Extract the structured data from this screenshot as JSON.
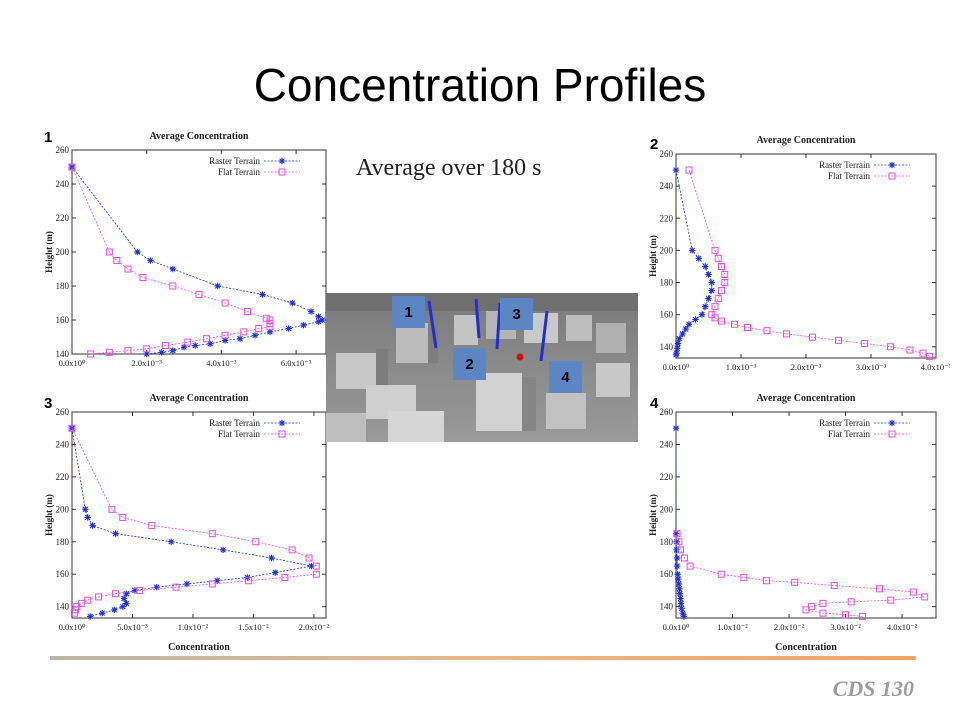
{
  "title": "Concentration Profiles",
  "subtitle": "Average over 180 s",
  "footer": "CDS 130",
  "panel_numbers": [
    "1",
    "2",
    "3",
    "4"
  ],
  "scene_labels": [
    "1",
    "3",
    "2",
    "4"
  ],
  "colors": {
    "raster": "#1f2fd6",
    "flat": "#e44de0"
  },
  "chart_data": [
    {
      "type": "line",
      "title": "Average Concentration",
      "ylabel": "Height (m)",
      "xlabel": "",
      "xlim": [
        0,
        0.0068
      ],
      "ylim": [
        140,
        260
      ],
      "xticks": [
        0,
        0.002,
        0.004,
        0.006
      ],
      "xtick_labels": [
        "0.0x10⁰",
        "2.0x10⁻³",
        "4.0x10⁻³",
        "6.0x10⁻³"
      ],
      "yticks": [
        140,
        160,
        180,
        200,
        220,
        240,
        260
      ],
      "legend_position": "top-right",
      "series": [
        {
          "name": "Raster Terrain",
          "marker": "star",
          "points": [
            [
              0.0,
              250
            ],
            [
              0.00175,
              200
            ],
            [
              0.0021,
              195
            ],
            [
              0.0027,
              190
            ],
            [
              0.0039,
              180
            ],
            [
              0.0051,
              175
            ],
            [
              0.0059,
              170
            ],
            [
              0.0064,
              165
            ],
            [
              0.0066,
              162
            ],
            [
              0.0067,
              160
            ],
            [
              0.0066,
              159
            ],
            [
              0.0062,
              157
            ],
            [
              0.0058,
              155
            ],
            [
              0.0053,
              153
            ],
            [
              0.0049,
              151
            ],
            [
              0.0045,
              149
            ],
            [
              0.0041,
              148
            ],
            [
              0.0037,
              146
            ],
            [
              0.0033,
              145
            ],
            [
              0.003,
              144
            ],
            [
              0.0027,
              142
            ],
            [
              0.0024,
              141
            ],
            [
              0.002,
              140
            ]
          ]
        },
        {
          "name": "Flat Terrain",
          "marker": "square",
          "points": [
            [
              0.0,
              250
            ],
            [
              0.001,
              200
            ],
            [
              0.0012,
              195
            ],
            [
              0.0015,
              190
            ],
            [
              0.0019,
              185
            ],
            [
              0.0027,
              180
            ],
            [
              0.0034,
              175
            ],
            [
              0.0041,
              170
            ],
            [
              0.0047,
              165
            ],
            [
              0.0052,
              161
            ],
            [
              0.0053,
              160
            ],
            [
              0.0053,
              158
            ],
            [
              0.0053,
              156
            ],
            [
              0.005,
              155
            ],
            [
              0.0046,
              153
            ],
            [
              0.0041,
              151
            ],
            [
              0.0036,
              149
            ],
            [
              0.0031,
              147
            ],
            [
              0.0025,
              145
            ],
            [
              0.002,
              143
            ],
            [
              0.0015,
              142
            ],
            [
              0.001,
              141
            ],
            [
              0.0005,
              140
            ]
          ]
        }
      ]
    },
    {
      "type": "line",
      "title": "Average Concentration",
      "ylabel": "Height (m)",
      "xlabel": "",
      "xlim": [
        0,
        0.004
      ],
      "ylim": [
        133,
        260
      ],
      "xticks": [
        0,
        0.001,
        0.002,
        0.003,
        0.004
      ],
      "xtick_labels": [
        "0.0x10⁰",
        "1.0x10⁻³",
        "2.0x10⁻³",
        "3.0x10⁻³",
        "4.0x10⁻³"
      ],
      "yticks": [
        140,
        160,
        180,
        200,
        220,
        240,
        260
      ],
      "legend_position": "top-right",
      "series": [
        {
          "name": "Raster Terrain",
          "marker": "star",
          "points": [
            [
              0.0,
              250
            ],
            [
              0.00025,
              200
            ],
            [
              0.00035,
              195
            ],
            [
              0.00045,
              190
            ],
            [
              0.0005,
              185
            ],
            [
              0.00055,
              180
            ],
            [
              0.00055,
              175
            ],
            [
              0.0005,
              170
            ],
            [
              0.00045,
              165
            ],
            [
              0.0004,
              160
            ],
            [
              0.0003,
              157
            ],
            [
              0.0002,
              154
            ],
            [
              0.00015,
              151
            ],
            [
              0.0001,
              148
            ],
            [
              5e-05,
              145
            ],
            [
              3e-05,
              142
            ],
            [
              2e-05,
              139
            ],
            [
              1e-05,
              136
            ],
            [
              0.0,
              135
            ]
          ]
        },
        {
          "name": "Flat Terrain",
          "marker": "square",
          "points": [
            [
              0.0002,
              250
            ],
            [
              0.0006,
              200
            ],
            [
              0.00065,
              195
            ],
            [
              0.0007,
              190
            ],
            [
              0.00075,
              185
            ],
            [
              0.00075,
              180
            ],
            [
              0.0007,
              175
            ],
            [
              0.00065,
              170
            ],
            [
              0.0006,
              165
            ],
            [
              0.00055,
              160
            ],
            [
              0.0006,
              158
            ],
            [
              0.0007,
              156
            ],
            [
              0.0009,
              154
            ],
            [
              0.0011,
              152
            ],
            [
              0.0014,
              150
            ],
            [
              0.0017,
              148
            ],
            [
              0.0021,
              146
            ],
            [
              0.0025,
              144
            ],
            [
              0.0029,
              142
            ],
            [
              0.0033,
              140
            ],
            [
              0.0036,
              138
            ],
            [
              0.0038,
              136
            ],
            [
              0.0039,
              134
            ]
          ]
        }
      ]
    },
    {
      "type": "line",
      "title": "Average Concentration",
      "ylabel": "Height (m)",
      "xlabel": "Concentration",
      "xlim": [
        0,
        0.021
      ],
      "ylim": [
        133,
        260
      ],
      "xticks": [
        0,
        0.005,
        0.01,
        0.015,
        0.02
      ],
      "xtick_labels": [
        "0.0x10⁰",
        "5.0x10⁻³",
        "1.0x10⁻²",
        "1.5x10⁻²",
        "2.0x10⁻²"
      ],
      "yticks": [
        140,
        160,
        180,
        200,
        220,
        240,
        260
      ],
      "legend_position": "top-right",
      "series": [
        {
          "name": "Raster Terrain",
          "marker": "star",
          "points": [
            [
              0.0,
              250
            ],
            [
              0.0011,
              200
            ],
            [
              0.0013,
              195
            ],
            [
              0.0017,
              190
            ],
            [
              0.0036,
              185
            ],
            [
              0.0082,
              180
            ],
            [
              0.0125,
              175
            ],
            [
              0.0165,
              170
            ],
            [
              0.0198,
              165
            ],
            [
              0.0168,
              161
            ],
            [
              0.0145,
              158
            ],
            [
              0.012,
              156
            ],
            [
              0.0095,
              154
            ],
            [
              0.007,
              152
            ],
            [
              0.0052,
              150
            ],
            [
              0.0045,
              148
            ],
            [
              0.0043,
              145
            ],
            [
              0.0045,
              142
            ],
            [
              0.0042,
              140
            ],
            [
              0.0035,
              138
            ],
            [
              0.0025,
              136
            ],
            [
              0.0015,
              134
            ]
          ]
        },
        {
          "name": "Flat Terrain",
          "marker": "square",
          "points": [
            [
              0.0,
              250
            ],
            [
              0.0033,
              200
            ],
            [
              0.0042,
              195
            ],
            [
              0.0066,
              190
            ],
            [
              0.0116,
              185
            ],
            [
              0.0152,
              180
            ],
            [
              0.0182,
              175
            ],
            [
              0.0196,
              170
            ],
            [
              0.0202,
              165
            ],
            [
              0.0202,
              160
            ],
            [
              0.0176,
              158
            ],
            [
              0.0146,
              156
            ],
            [
              0.0116,
              154
            ],
            [
              0.0086,
              152
            ],
            [
              0.0056,
              150
            ],
            [
              0.0036,
              148
            ],
            [
              0.0022,
              146
            ],
            [
              0.0013,
              144
            ],
            [
              0.0008,
              142
            ],
            [
              0.0004,
              140
            ],
            [
              0.0003,
              138
            ],
            [
              0.0002,
              136
            ]
          ]
        }
      ]
    },
    {
      "type": "line",
      "title": "Average Concentration",
      "ylabel": "Height (m)",
      "xlabel": "Concentration",
      "xlim": [
        0,
        0.046
      ],
      "ylim": [
        133,
        260
      ],
      "xticks": [
        0,
        0.01,
        0.02,
        0.03,
        0.04
      ],
      "xtick_labels": [
        "0.0x10⁰",
        "1.0x10⁻²",
        "2.0x10⁻²",
        "3.0x10⁻²",
        "4.0x10⁻²"
      ],
      "yticks": [
        140,
        160,
        180,
        200,
        220,
        240,
        260
      ],
      "legend_position": "top-right",
      "series": [
        {
          "name": "Raster Terrain",
          "marker": "star",
          "points": [
            [
              0.0,
              250
            ],
            [
              0.0,
              185
            ],
            [
              0.0001,
              180
            ],
            [
              0.0001,
              175
            ],
            [
              0.0002,
              170
            ],
            [
              0.0002,
              165
            ],
            [
              0.0003,
              160
            ],
            [
              0.0004,
              157
            ],
            [
              0.0005,
              154
            ],
            [
              0.0006,
              151
            ],
            [
              0.0007,
              148
            ],
            [
              0.0008,
              145
            ],
            [
              0.0009,
              142
            ],
            [
              0.001,
              139
            ],
            [
              0.0012,
              136
            ],
            [
              0.0014,
              134
            ]
          ]
        },
        {
          "name": "Flat Terrain",
          "marker": "square",
          "points": [
            [
              0.0002,
              185
            ],
            [
              0.0005,
              180
            ],
            [
              0.0008,
              175
            ],
            [
              0.0015,
              170
            ],
            [
              0.0025,
              165
            ],
            [
              0.008,
              160
            ],
            [
              0.012,
              158
            ],
            [
              0.016,
              156
            ],
            [
              0.021,
              155
            ],
            [
              0.028,
              153
            ],
            [
              0.036,
              151
            ],
            [
              0.042,
              149
            ],
            [
              0.044,
              146
            ],
            [
              0.038,
              144
            ],
            [
              0.031,
              143
            ],
            [
              0.026,
              142
            ],
            [
              0.024,
              140
            ],
            [
              0.023,
              138
            ],
            [
              0.026,
              136
            ],
            [
              0.03,
              135
            ],
            [
              0.033,
              134
            ]
          ]
        }
      ]
    }
  ]
}
